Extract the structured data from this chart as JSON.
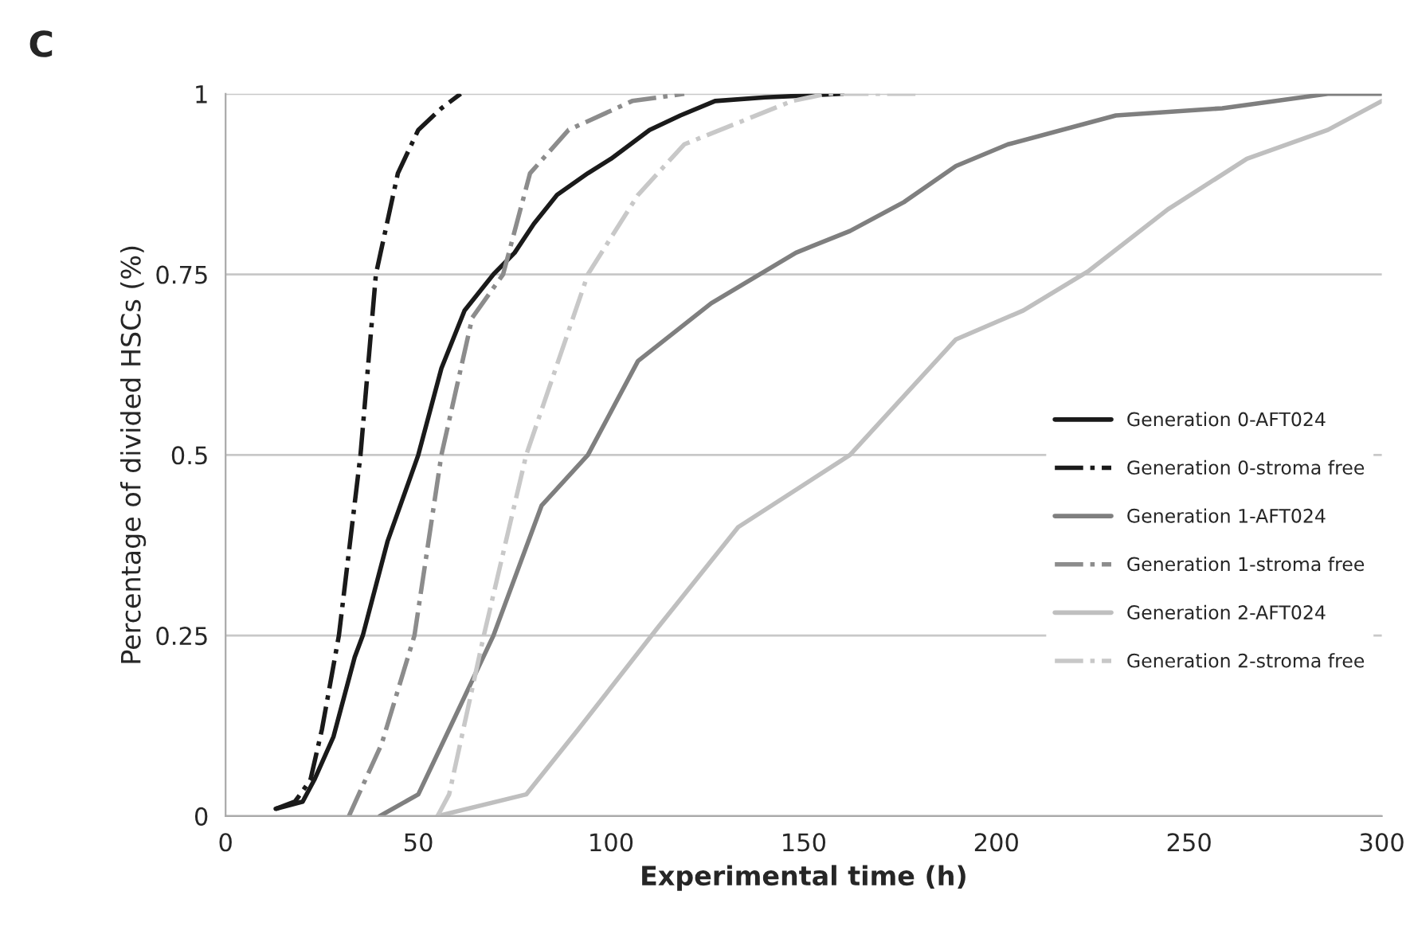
{
  "chart_data": {
    "type": "line",
    "title": "C",
    "xlabel": "Experimental time (h)",
    "ylabel": "Percentage of divided HSCs (%)",
    "xlim": [
      0,
      300
    ],
    "xticks": [
      0,
      50,
      100,
      150,
      200,
      250,
      300
    ],
    "ylim": [
      0,
      1
    ],
    "yticks": [
      0,
      0.25,
      0.5,
      0.75,
      1
    ],
    "grid": "y",
    "legend": "right",
    "series": [
      {
        "name": "Generation 0-AFT024",
        "color": "#1a1a1a",
        "line_style": "solid",
        "x": [
          13,
          20,
          23,
          28,
          33.5,
          35.6,
          42,
          50,
          56,
          62,
          69.5,
          75,
          80,
          86,
          94,
          100,
          110,
          118,
          127,
          140,
          160
        ],
        "values": [
          0.01,
          0.02,
          0.05,
          0.11,
          0.22,
          0.25,
          0.38,
          0.5,
          0.62,
          0.7,
          0.75,
          0.78,
          0.82,
          0.86,
          0.89,
          0.91,
          0.95,
          0.97,
          0.99,
          0.995,
          1
        ]
      },
      {
        "name": "Generation 0-stroma free",
        "color": "#1a1a1a",
        "line_style": "dashdot",
        "x": [
          13,
          18,
          22,
          25,
          29.4,
          35,
          39,
          44.7,
          50,
          56,
          61
        ],
        "values": [
          0.01,
          0.02,
          0.05,
          0.12,
          0.25,
          0.5,
          0.75,
          0.89,
          0.95,
          0.98,
          1
        ]
      },
      {
        "name": "Generation 1-AFT024",
        "color": "#7f7f7f",
        "line_style": "solid",
        "x": [
          40,
          50,
          58,
          69.5,
          82,
          94,
          107,
          126,
          148,
          162,
          176,
          189.5,
          203,
          231,
          258.6,
          286,
          300
        ],
        "values": [
          0,
          0.03,
          0.12,
          0.25,
          0.43,
          0.5,
          0.63,
          0.71,
          0.78,
          0.81,
          0.85,
          0.9,
          0.93,
          0.97,
          0.98,
          1,
          1
        ]
      },
      {
        "name": "Generation 1-stroma free",
        "color": "#8c8c8c",
        "line_style": "dashdot",
        "x": [
          32,
          40.5,
          49,
          56,
          64,
          72,
          79,
          89,
          105.5,
          119
        ],
        "values": [
          0,
          0.1,
          0.25,
          0.5,
          0.69,
          0.75,
          0.89,
          0.95,
          0.99,
          1
        ]
      },
      {
        "name": "Generation 2-AFT024",
        "color": "#bfbfbf",
        "line_style": "solid",
        "x": [
          55,
          78,
          91.5,
          112,
          133,
          162,
          189.5,
          207,
          224,
          244.5,
          265,
          286,
          300
        ],
        "values": [
          0,
          0.03,
          0.12,
          0.26,
          0.4,
          0.5,
          0.66,
          0.7,
          0.755,
          0.84,
          0.91,
          0.95,
          0.99
        ]
      },
      {
        "name": "Generation 2-stroma free",
        "color": "#c8c8c8",
        "line_style": "dashdot",
        "x": [
          55,
          58,
          67,
          78,
          94,
          107,
          119,
          133,
          147,
          156,
          180
        ],
        "values": [
          0,
          0.03,
          0.25,
          0.5,
          0.75,
          0.86,
          0.93,
          0.96,
          0.99,
          1,
          1
        ]
      }
    ]
  }
}
